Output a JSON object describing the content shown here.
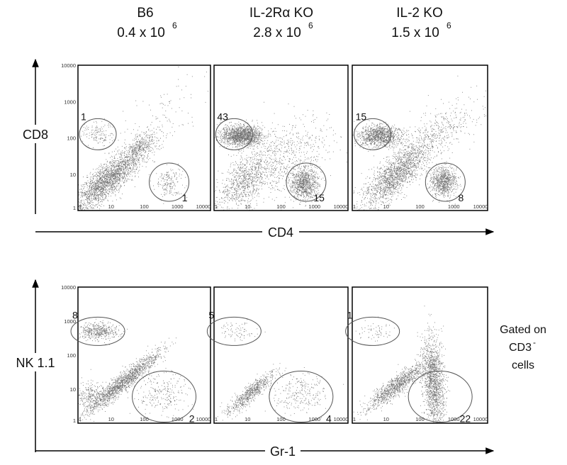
{
  "columns": [
    {
      "name": "B6",
      "count": "0.4 x 10",
      "exponent": "6"
    },
    {
      "name": "IL-2Rα KO",
      "count": "2.8 x 10",
      "exponent": "6"
    },
    {
      "name": "IL-2 KO",
      "count": "1.5 x 10",
      "exponent": "6"
    }
  ],
  "ticks": [
    "1",
    "10",
    "100",
    "1000",
    "10000"
  ],
  "rows": [
    {
      "y_label": "CD8",
      "x_label": "CD4",
      "panels": [
        {
          "gates": [
            1,
            1
          ]
        },
        {
          "gates": [
            43,
            15
          ]
        },
        {
          "gates": [
            15,
            8
          ]
        }
      ]
    },
    {
      "y_label": "NK 1.1",
      "x_label": "Gr-1",
      "note": {
        "line1": "Gated on",
        "line2": "CD3",
        "sup": "-",
        "line3": "cells"
      },
      "panels": [
        {
          "gates": [
            8,
            2
          ]
        },
        {
          "gates": [
            5,
            4
          ]
        },
        {
          "gates": [
            1,
            22
          ]
        }
      ]
    }
  ]
}
